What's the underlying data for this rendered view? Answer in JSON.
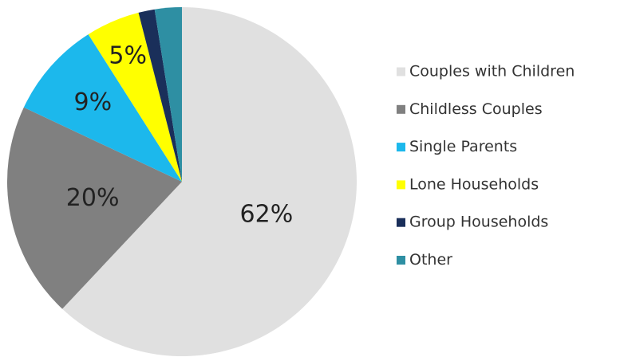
{
  "chart_data": {
    "type": "pie",
    "categories": [
      "Couples with Children",
      "Childless Couples",
      "Single Parents",
      "Lone Households",
      "Group Households",
      "Other"
    ],
    "values": [
      62,
      20,
      9,
      5,
      1.5,
      2.5
    ],
    "value_labels": [
      "62%",
      "20%",
      "9%",
      "5%",
      null,
      null
    ],
    "colors": [
      "#e0e0e0",
      "#808080",
      "#1cb8ec",
      "#ffff00",
      "#1a2f5a",
      "#2e8fa3"
    ],
    "legend": "right"
  }
}
